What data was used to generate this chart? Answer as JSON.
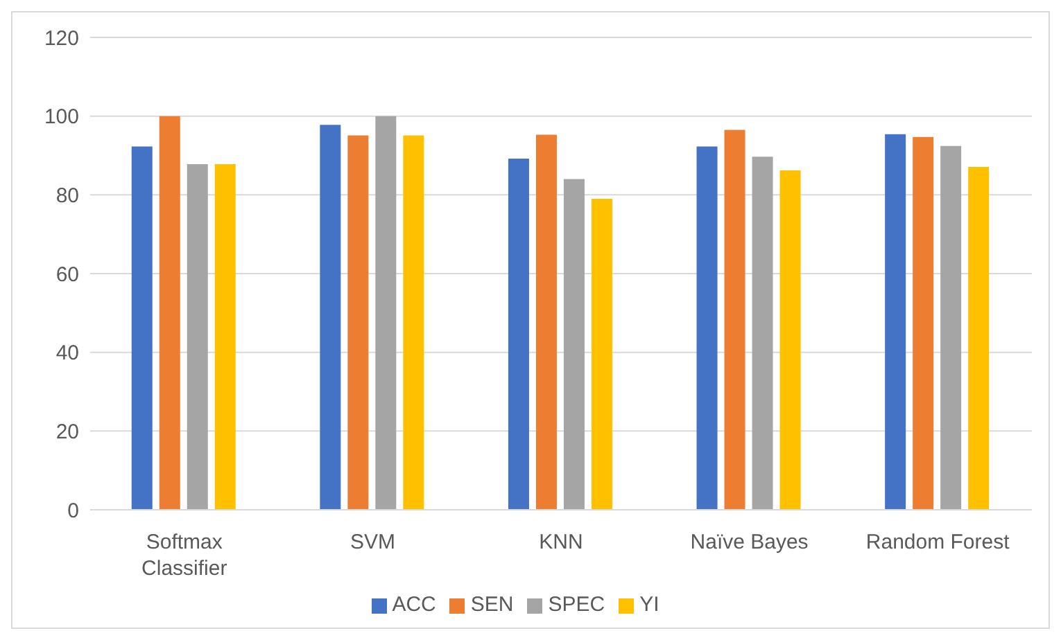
{
  "chart_data": {
    "type": "bar",
    "categories": [
      "Softmax Classifier",
      "SVM",
      "KNN",
      "Naïve Bayes",
      "Random Forest"
    ],
    "series": [
      {
        "name": "ACC",
        "color": "#4472c4",
        "values": [
          92.3,
          97.8,
          89.2,
          92.3,
          95.4
        ]
      },
      {
        "name": "SEN",
        "color": "#ed7d31",
        "values": [
          100,
          95.1,
          95.3,
          96.5,
          94.7
        ]
      },
      {
        "name": "SPEC",
        "color": "#a5a5a5",
        "values": [
          87.8,
          100,
          84.0,
          89.7,
          92.4
        ]
      },
      {
        "name": "YI",
        "color": "#ffc000",
        "values": [
          87.8,
          95.1,
          79.0,
          86.2,
          87.1
        ]
      }
    ],
    "ylim": [
      0,
      120
    ],
    "yticks": [
      0,
      20,
      40,
      60,
      80,
      100,
      120
    ],
    "grid": "y",
    "legend": "bottom"
  }
}
